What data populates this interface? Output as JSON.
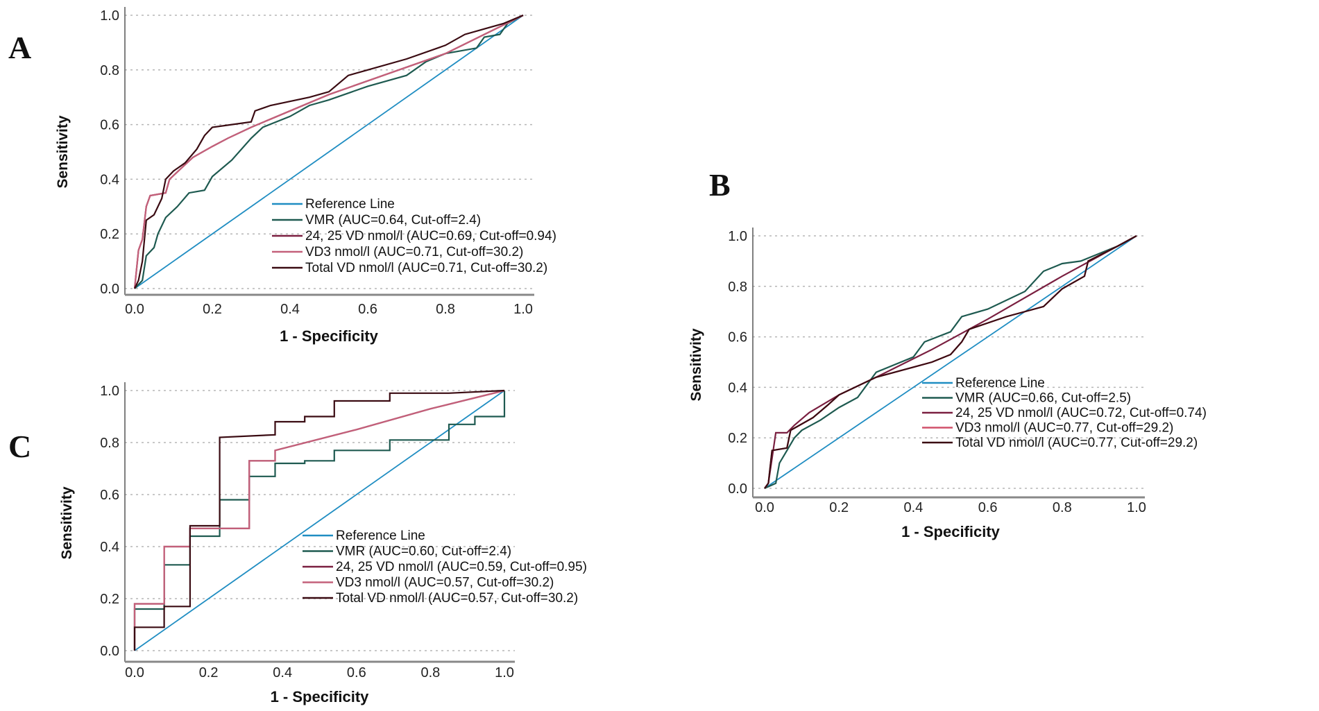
{
  "chart_data": [
    {
      "type": "line",
      "panel_label": "A",
      "xlabel": "1 - Specificity",
      "ylabel": "Sensitivity",
      "xlim": [
        0,
        1
      ],
      "ylim": [
        0,
        1
      ],
      "xticks": [
        "0.0",
        "0.2",
        "0.4",
        "0.6",
        "0.8",
        "1.0"
      ],
      "yticks": [
        "0.0",
        "0.2",
        "0.4",
        "0.6",
        "0.8",
        "1.0"
      ],
      "grid": "horizontal dotted",
      "legend_position": "bottom-right",
      "series": [
        {
          "name": "Reference Line",
          "color": "#1f8dc2",
          "points": [
            [
              0,
              0
            ],
            [
              1,
              1
            ]
          ]
        },
        {
          "name": "VMR (AUC=0.64, Cut-off=2.4)",
          "color": "#1e5a50",
          "points": [
            [
              0,
              0
            ],
            [
              0.02,
              0.03
            ],
            [
              0.03,
              0.12
            ],
            [
              0.05,
              0.15
            ],
            [
              0.06,
              0.2
            ],
            [
              0.08,
              0.26
            ],
            [
              0.11,
              0.3
            ],
            [
              0.14,
              0.35
            ],
            [
              0.18,
              0.36
            ],
            [
              0.2,
              0.41
            ],
            [
              0.25,
              0.47
            ],
            [
              0.3,
              0.55
            ],
            [
              0.33,
              0.59
            ],
            [
              0.4,
              0.63
            ],
            [
              0.45,
              0.67
            ],
            [
              0.5,
              0.69
            ],
            [
              0.6,
              0.74
            ],
            [
              0.7,
              0.78
            ],
            [
              0.75,
              0.83
            ],
            [
              0.8,
              0.86
            ],
            [
              0.88,
              0.88
            ],
            [
              0.9,
              0.92
            ],
            [
              0.94,
              0.93
            ],
            [
              0.96,
              0.97
            ],
            [
              1,
              1
            ]
          ]
        },
        {
          "name": "24, 25 VD nmol/l (AUC=0.69, Cut-off=0.94)",
          "color": "#7a1f40",
          "points": [
            [
              0,
              0
            ],
            [
              0.01,
              0.14
            ],
            [
              0.02,
              0.18
            ],
            [
              0.03,
              0.3
            ],
            [
              0.04,
              0.34
            ],
            [
              0.08,
              0.35
            ],
            [
              0.09,
              0.4
            ],
            [
              0.12,
              0.44
            ],
            [
              0.15,
              0.48
            ],
            [
              0.2,
              0.52
            ],
            [
              0.24,
              0.55
            ],
            [
              0.3,
              0.59
            ],
            [
              0.35,
              0.62
            ],
            [
              0.5,
              0.71
            ],
            [
              0.6,
              0.76
            ],
            [
              0.8,
              0.86
            ],
            [
              0.9,
              0.93
            ],
            [
              1,
              1
            ]
          ]
        },
        {
          "name": "VD3 nmol/l (AUC=0.71, Cut-off=30.2)",
          "color": "#c4607a",
          "points": [
            [
              0,
              0
            ],
            [
              0.01,
              0.14
            ],
            [
              0.02,
              0.18
            ],
            [
              0.03,
              0.3
            ],
            [
              0.04,
              0.34
            ],
            [
              0.08,
              0.35
            ],
            [
              0.09,
              0.4
            ],
            [
              0.12,
              0.44
            ],
            [
              0.15,
              0.48
            ],
            [
              0.2,
              0.52
            ],
            [
              0.24,
              0.55
            ],
            [
              0.3,
              0.59
            ],
            [
              0.35,
              0.62
            ],
            [
              0.5,
              0.71
            ],
            [
              0.6,
              0.76
            ],
            [
              0.8,
              0.86
            ],
            [
              0.9,
              0.93
            ],
            [
              1,
              1
            ]
          ]
        },
        {
          "name": "Total VD nmol/l (AUC=0.71, Cut-off=30.2)",
          "color": "#3a0b12",
          "points": [
            [
              0,
              0
            ],
            [
              0.01,
              0.03
            ],
            [
              0.02,
              0.1
            ],
            [
              0.03,
              0.25
            ],
            [
              0.05,
              0.27
            ],
            [
              0.07,
              0.33
            ],
            [
              0.08,
              0.4
            ],
            [
              0.1,
              0.43
            ],
            [
              0.13,
              0.46
            ],
            [
              0.16,
              0.51
            ],
            [
              0.18,
              0.56
            ],
            [
              0.2,
              0.59
            ],
            [
              0.25,
              0.6
            ],
            [
              0.3,
              0.61
            ],
            [
              0.31,
              0.65
            ],
            [
              0.35,
              0.67
            ],
            [
              0.45,
              0.7
            ],
            [
              0.5,
              0.72
            ],
            [
              0.55,
              0.78
            ],
            [
              0.6,
              0.8
            ],
            [
              0.7,
              0.84
            ],
            [
              0.8,
              0.89
            ],
            [
              0.85,
              0.93
            ],
            [
              0.9,
              0.95
            ],
            [
              0.95,
              0.97
            ],
            [
              1,
              1
            ]
          ]
        }
      ]
    },
    {
      "type": "line",
      "panel_label": "B",
      "xlabel": "1 - Specificity",
      "ylabel": "Sensitivity",
      "xlim": [
        0,
        1
      ],
      "ylim": [
        0,
        1
      ],
      "xticks": [
        "0.0",
        "0.2",
        "0.4",
        "0.6",
        "0.8",
        "1.0"
      ],
      "yticks": [
        "0.0",
        "0.2",
        "0.4",
        "0.6",
        "0.8",
        "1.0"
      ],
      "grid": "horizontal dotted",
      "legend_position": "bottom-right",
      "series": [
        {
          "name": "Reference Line",
          "color": "#1f8dc2",
          "points": [
            [
              0,
              0
            ],
            [
              1,
              1
            ]
          ]
        },
        {
          "name": "VMR (AUC=0.66, Cut-off=2.5)",
          "color": "#1e5a50",
          "points": [
            [
              0,
              0
            ],
            [
              0.03,
              0.02
            ],
            [
              0.04,
              0.1
            ],
            [
              0.06,
              0.15
            ],
            [
              0.08,
              0.2
            ],
            [
              0.1,
              0.23
            ],
            [
              0.15,
              0.27
            ],
            [
              0.2,
              0.32
            ],
            [
              0.25,
              0.36
            ],
            [
              0.3,
              0.46
            ],
            [
              0.35,
              0.49
            ],
            [
              0.4,
              0.52
            ],
            [
              0.43,
              0.58
            ],
            [
              0.5,
              0.62
            ],
            [
              0.53,
              0.68
            ],
            [
              0.6,
              0.71
            ],
            [
              0.7,
              0.78
            ],
            [
              0.75,
              0.86
            ],
            [
              0.8,
              0.89
            ],
            [
              0.85,
              0.9
            ],
            [
              0.9,
              0.93
            ],
            [
              0.95,
              0.96
            ],
            [
              1,
              1
            ]
          ]
        },
        {
          "name": "24, 25 VD nmol/l (AUC=0.72, Cut-off=0.74)",
          "color": "#7a1f40",
          "points": [
            [
              0,
              0
            ],
            [
              0.01,
              0.02
            ],
            [
              0.03,
              0.22
            ],
            [
              0.06,
              0.22
            ],
            [
              0.08,
              0.25
            ],
            [
              0.12,
              0.3
            ],
            [
              0.2,
              0.37
            ],
            [
              0.3,
              0.44
            ],
            [
              0.45,
              0.55
            ],
            [
              0.6,
              0.67
            ],
            [
              0.8,
              0.84
            ],
            [
              1,
              1
            ]
          ]
        },
        {
          "name": "VD3 nmol/l (AUC=0.77, Cut-off=29.2)",
          "color": "#d0506a",
          "points": [
            [
              0,
              0
            ],
            [
              0.01,
              0.02
            ],
            [
              0.02,
              0.15
            ],
            [
              0.06,
              0.16
            ],
            [
              0.07,
              0.23
            ],
            [
              0.13,
              0.28
            ],
            [
              0.17,
              0.33
            ],
            [
              0.2,
              0.37
            ],
            [
              0.3,
              0.44
            ],
            [
              0.4,
              0.48
            ],
            [
              0.45,
              0.5
            ],
            [
              0.5,
              0.53
            ],
            [
              0.53,
              0.58
            ],
            [
              0.55,
              0.63
            ],
            [
              0.65,
              0.68
            ],
            [
              0.75,
              0.72
            ],
            [
              0.8,
              0.79
            ],
            [
              0.86,
              0.84
            ],
            [
              0.87,
              0.9
            ],
            [
              0.95,
              0.96
            ],
            [
              1,
              1
            ]
          ]
        },
        {
          "name": "Total VD nmol/l (AUC=0.77, Cut-off=29.2)",
          "color": "#3a0b12",
          "points": [
            [
              0,
              0
            ],
            [
              0.01,
              0.02
            ],
            [
              0.02,
              0.15
            ],
            [
              0.06,
              0.16
            ],
            [
              0.07,
              0.23
            ],
            [
              0.13,
              0.28
            ],
            [
              0.17,
              0.33
            ],
            [
              0.2,
              0.37
            ],
            [
              0.3,
              0.44
            ],
            [
              0.4,
              0.48
            ],
            [
              0.45,
              0.5
            ],
            [
              0.5,
              0.53
            ],
            [
              0.53,
              0.58
            ],
            [
              0.55,
              0.63
            ],
            [
              0.65,
              0.68
            ],
            [
              0.75,
              0.72
            ],
            [
              0.8,
              0.79
            ],
            [
              0.86,
              0.84
            ],
            [
              0.87,
              0.9
            ],
            [
              0.95,
              0.96
            ],
            [
              1,
              1
            ]
          ]
        }
      ]
    },
    {
      "type": "line",
      "panel_label": "C",
      "xlabel": "1 - Specificity",
      "ylabel": "Sensitivity",
      "xlim": [
        0,
        1
      ],
      "ylim": [
        0,
        1
      ],
      "xticks": [
        "0.0",
        "0.2",
        "0.4",
        "0.6",
        "0.8",
        "1.0"
      ],
      "yticks": [
        "0.0",
        "0.2",
        "0.4",
        "0.6",
        "0.8",
        "1.0"
      ],
      "grid": "horizontal dotted",
      "legend_position": "bottom-right",
      "series": [
        {
          "name": "Reference Line",
          "color": "#1f8dc2",
          "points": [
            [
              0,
              0
            ],
            [
              1,
              1
            ]
          ]
        },
        {
          "name": "VMR (AUC=0.60, Cut-off=2.4)",
          "color": "#1e5a50",
          "points": [
            [
              0,
              0
            ],
            [
              0,
              0.16
            ],
            [
              0.08,
              0.16
            ],
            [
              0.08,
              0.33
            ],
            [
              0.15,
              0.33
            ],
            [
              0.15,
              0.44
            ],
            [
              0.23,
              0.44
            ],
            [
              0.23,
              0.58
            ],
            [
              0.31,
              0.58
            ],
            [
              0.31,
              0.67
            ],
            [
              0.38,
              0.67
            ],
            [
              0.38,
              0.72
            ],
            [
              0.46,
              0.72
            ],
            [
              0.46,
              0.73
            ],
            [
              0.54,
              0.73
            ],
            [
              0.54,
              0.77
            ],
            [
              0.69,
              0.77
            ],
            [
              0.69,
              0.81
            ],
            [
              0.85,
              0.81
            ],
            [
              0.85,
              0.87
            ],
            [
              0.92,
              0.87
            ],
            [
              0.92,
              0.9
            ],
            [
              1,
              0.9
            ],
            [
              1,
              1
            ]
          ]
        },
        {
          "name": "24, 25 VD nmol/l (AUC=0.59, Cut-off=0.95)",
          "color": "#7a1f40",
          "points": [
            [
              0,
              0
            ],
            [
              0,
              0.18
            ],
            [
              0.08,
              0.18
            ],
            [
              0.08,
              0.4
            ],
            [
              0.15,
              0.4
            ],
            [
              0.15,
              0.47
            ],
            [
              0.31,
              0.47
            ],
            [
              0.31,
              0.73
            ],
            [
              0.38,
              0.73
            ],
            [
              0.38,
              0.77
            ],
            [
              0.6,
              0.85
            ],
            [
              0.8,
              0.93
            ],
            [
              1,
              1
            ]
          ]
        },
        {
          "name": "VD3 nmol/l (AUC=0.57, Cut-off=30.2)",
          "color": "#c4607a",
          "points": [
            [
              0,
              0
            ],
            [
              0,
              0.18
            ],
            [
              0.08,
              0.18
            ],
            [
              0.08,
              0.4
            ],
            [
              0.15,
              0.4
            ],
            [
              0.15,
              0.47
            ],
            [
              0.31,
              0.47
            ],
            [
              0.31,
              0.73
            ],
            [
              0.38,
              0.73
            ],
            [
              0.38,
              0.77
            ],
            [
              0.6,
              0.85
            ],
            [
              0.8,
              0.93
            ],
            [
              1,
              1
            ]
          ]
        },
        {
          "name": "Total VD nmol/l (AUC=0.57, Cut-off=30.2)",
          "color": "#3a0b12",
          "points": [
            [
              0,
              0
            ],
            [
              0,
              0.09
            ],
            [
              0.08,
              0.09
            ],
            [
              0.08,
              0.17
            ],
            [
              0.15,
              0.17
            ],
            [
              0.15,
              0.48
            ],
            [
              0.23,
              0.48
            ],
            [
              0.23,
              0.82
            ],
            [
              0.38,
              0.83
            ],
            [
              0.38,
              0.88
            ],
            [
              0.46,
              0.88
            ],
            [
              0.46,
              0.9
            ],
            [
              0.54,
              0.9
            ],
            [
              0.54,
              0.96
            ],
            [
              0.69,
              0.96
            ],
            [
              0.69,
              0.99
            ],
            [
              0.85,
              0.99
            ],
            [
              1,
              1
            ]
          ]
        }
      ]
    }
  ]
}
